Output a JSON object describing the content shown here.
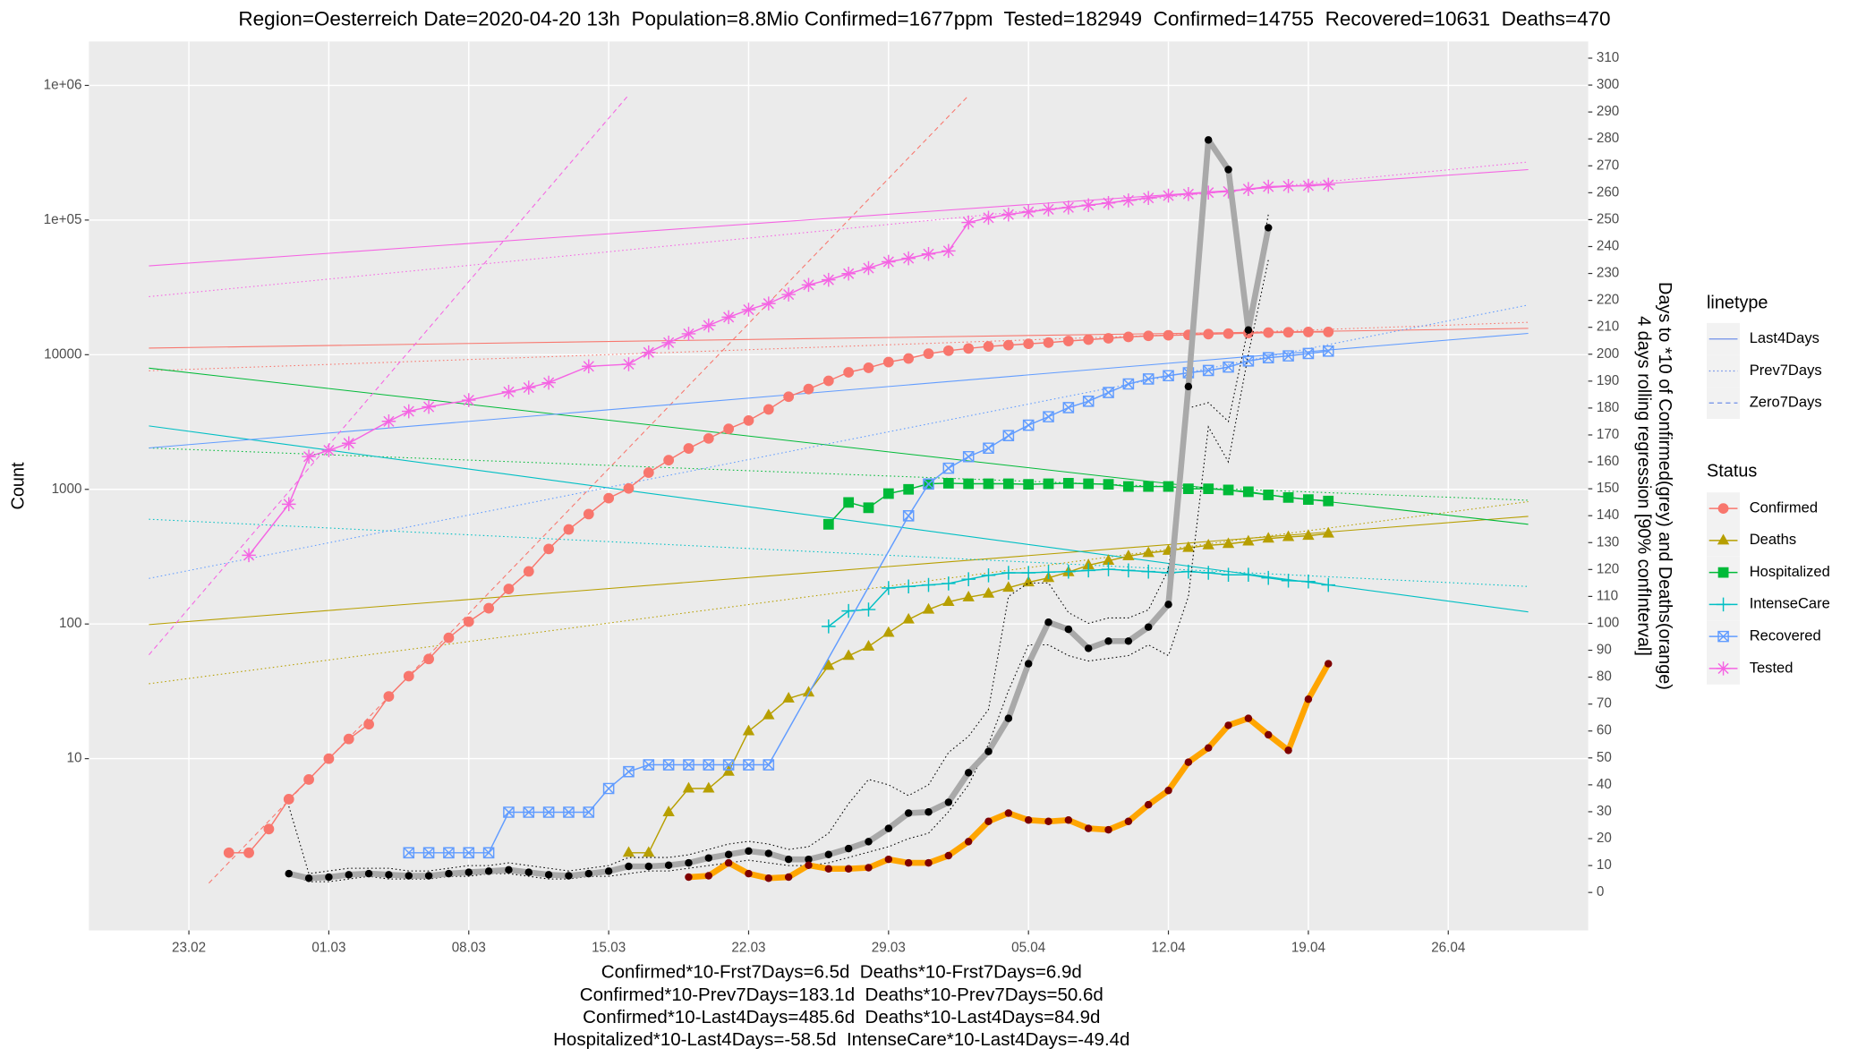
{
  "chart_data": {
    "type": "line",
    "title": "Region=Oesterreich Date=2020-04-20 13h  Population=8.8Mio Confirmed=1677ppm  Tested=182949  Confirmed=14755  Recovered=10631  Deaths=470",
    "y_label": "Count",
    "y2_label": [
      "Days to *10 of Confirmed(grey) and Deaths(orange)",
      "4 days rolling regression [90% confInterval]"
    ],
    "x_label": [
      "Confirmed*10-Frst7Days=6.5d  Deaths*10-Frst7Days=6.9d",
      "Confirmed*10-Prev7Days=183.1d  Deaths*10-Prev7Days=50.6d",
      "Confirmed*10-Last4Days=485.6d  Deaths*10-Last4Days=84.9d",
      "Hospitalized*10-Last4Days=-58.5d  IntenseCare*10-Last4Days=-49.4d"
    ],
    "xlim": [
      "18.02",
      "03.05"
    ],
    "xticks": [
      "23.02",
      "01.03",
      "08.03",
      "15.03",
      "22.03",
      "29.03",
      "05.04",
      "12.04",
      "19.04",
      "26.04"
    ],
    "log_y": true,
    "ylim": [
      0.53,
      2120000
    ],
    "yticks": [
      10,
      100,
      1000,
      10000,
      {
        "value": 100000,
        "label": "1e+05"
      },
      {
        "value": 1000000,
        "label": "1e+06"
      }
    ],
    "y2lim": [
      -14.1,
      316.2
    ],
    "y2ticks": [
      0,
      10,
      20,
      30,
      40,
      50,
      60,
      70,
      80,
      90,
      100,
      110,
      120,
      130,
      140,
      150,
      160,
      170,
      180,
      190,
      200,
      210,
      220,
      230,
      240,
      250,
      260,
      270,
      280,
      290,
      300,
      310
    ],
    "grid": true,
    "legend_position": "right",
    "linetype_title": "linetype",
    "linetype_color": "#6f8fe8",
    "linetypes": [
      {
        "name": "Last4Days",
        "dash": "solid"
      },
      {
        "name": "Prev7Days",
        "dash": "dotted"
      },
      {
        "name": "Zero7Days",
        "dash": "dashed"
      }
    ],
    "status_title": "Status",
    "series": [
      {
        "name": "Confirmed",
        "color": "#F8766D",
        "shape": "circle",
        "x": [
          "25.02",
          "26.02",
          "27.02",
          "28.02",
          "29.02",
          "01.03",
          "02.03",
          "03.03",
          "04.03",
          "05.03",
          "06.03",
          "07.03",
          "08.03",
          "09.03",
          "10.03",
          "11.03",
          "12.03",
          "13.03",
          "14.03",
          "15.03",
          "16.03",
          "17.03",
          "18.03",
          "19.03",
          "20.03",
          "21.03",
          "22.03",
          "23.03",
          "24.03",
          "25.03",
          "26.03",
          "27.03",
          "28.03",
          "29.03",
          "30.03",
          "31.03",
          "01.04",
          "02.04",
          "03.04",
          "04.04",
          "05.04",
          "06.04",
          "07.04",
          "08.04",
          "09.04",
          "10.04",
          "11.04",
          "12.04",
          "13.04",
          "14.04",
          "15.04",
          "16.04",
          "17.04",
          "18.04",
          "19.04",
          "20.04"
        ],
        "values": [
          2,
          2,
          3,
          5,
          7,
          10,
          14,
          18,
          29,
          41,
          55,
          79,
          104,
          131,
          182,
          246,
          361,
          504,
          655,
          860,
          1016,
          1332,
          1646,
          2013,
          2388,
          2814,
          3244,
          3924,
          4876,
          5560,
          6398,
          7399,
          7995,
          8813,
          9377,
          10180,
          10711,
          11129,
          11524,
          11781,
          12051,
          12297,
          12639,
          12942,
          13244,
          13555,
          13806,
          13945,
          14041,
          14226,
          14336,
          14476,
          14595,
          14671,
          14749,
          14755
        ],
        "fits": [
          {
            "x": [
              "21.02",
              "30.04"
            ],
            "values": [
              11200,
              15700
            ]
          },
          {
            "x": [
              "21.02",
              "30.04"
            ],
            "values": [
              7600,
              17400
            ]
          },
          {
            "x": [
              "24.02",
              "02.04"
            ],
            "values": [
              1.19,
              840000
            ]
          }
        ]
      },
      {
        "name": "Deaths",
        "color": "#B79F00",
        "shape": "triangle",
        "x": [
          "16.03",
          "17.03",
          "18.03",
          "19.03",
          "20.03",
          "21.03",
          "22.03",
          "23.03",
          "24.03",
          "25.03",
          "26.03",
          "27.03",
          "28.03",
          "29.03",
          "30.03",
          "31.03",
          "01.04",
          "02.04",
          "03.04",
          "04.04",
          "05.04",
          "06.04",
          "07.04",
          "08.04",
          "09.04",
          "10.04",
          "11.04",
          "12.04",
          "13.04",
          "14.04",
          "15.04",
          "16.04",
          "17.04",
          "18.04",
          "19.04",
          "20.04"
        ],
        "values": [
          2,
          2,
          4,
          6,
          6,
          8,
          16,
          21,
          28,
          31,
          49,
          58,
          68,
          86,
          108,
          128,
          146,
          158,
          168,
          186,
          204,
          220,
          243,
          273,
          295,
          319,
          337,
          350,
          368,
          384,
          393,
          410,
          431,
          443,
          452,
          470
        ],
        "fits": [
          {
            "x": [
              "21.02",
              "30.04"
            ],
            "values": [
              99,
              630
            ]
          },
          {
            "x": [
              "21.02",
              "30.04"
            ],
            "values": [
              36,
              810
            ]
          },
          null
        ]
      },
      {
        "name": "Hospitalized",
        "color": "#00BA38",
        "shape": "square",
        "x": [
          "26.03",
          "27.03",
          "28.03",
          "29.03",
          "30.03",
          "31.03",
          "01.04",
          "02.04",
          "03.04",
          "04.04",
          "05.04",
          "06.04",
          "07.04",
          "08.04",
          "09.04",
          "10.04",
          "11.04",
          "12.04",
          "13.04",
          "14.04",
          "15.04",
          "16.04",
          "17.04",
          "18.04",
          "19.04",
          "20.04"
        ],
        "values": [
          550,
          800,
          730,
          930,
          1000,
          1100,
          1110,
          1100,
          1100,
          1100,
          1090,
          1100,
          1110,
          1100,
          1090,
          1050,
          1050,
          1050,
          1010,
          1010,
          990,
          960,
          910,
          870,
          840,
          820
        ],
        "fits": [
          {
            "x": [
              "21.02",
              "30.04"
            ],
            "values": [
              7950,
              550
            ]
          },
          {
            "x": [
              "21.02",
              "30.04"
            ],
            "values": [
              2030,
              830
            ]
          },
          null
        ]
      },
      {
        "name": "IntenseCare",
        "color": "#00BFC4",
        "shape": "plus",
        "x": [
          "26.03",
          "27.03",
          "28.03",
          "29.03",
          "30.03",
          "31.03",
          "01.04",
          "02.04",
          "03.04",
          "04.04",
          "05.04",
          "06.04",
          "07.04",
          "08.04",
          "09.04",
          "10.04",
          "11.04",
          "12.04",
          "13.04",
          "14.04",
          "15.04",
          "16.04",
          "17.04",
          "18.04",
          "19.04",
          "20.04"
        ],
        "values": [
          96,
          125,
          128,
          185,
          190,
          195,
          200,
          215,
          230,
          240,
          240,
          243,
          245,
          250,
          255,
          250,
          245,
          240,
          245,
          240,
          232,
          232,
          220,
          210,
          207,
          195
        ],
        "fits": [
          {
            "x": [
              "21.02",
              "30.04"
            ],
            "values": [
              2960,
              123
            ]
          },
          {
            "x": [
              "21.02",
              "30.04"
            ],
            "values": [
              600,
              190
            ]
          },
          null
        ]
      },
      {
        "name": "Recovered",
        "color": "#619CFF",
        "shape": "square-cross",
        "x": [
          "05.03",
          "06.03",
          "07.03",
          "08.03",
          "09.03",
          "10.03",
          "11.03",
          "12.03",
          "13.03",
          "14.03",
          "15.03",
          "16.03",
          "17.03",
          "18.03",
          "19.03",
          "20.03",
          "21.03",
          "22.03",
          "23.03",
          "30.03",
          "31.03",
          "01.04",
          "02.04",
          "03.04",
          "04.04",
          "05.04",
          "06.04",
          "07.04",
          "08.04",
          "09.04",
          "10.04",
          "11.04",
          "12.04",
          "13.04",
          "14.04",
          "15.04",
          "16.04",
          "17.04",
          "18.04",
          "19.04",
          "20.04"
        ],
        "values": [
          2,
          2,
          2,
          2,
          2,
          4,
          4,
          4,
          4,
          4,
          6,
          8,
          9,
          9,
          9,
          9,
          9,
          9,
          9,
          636,
          1095,
          1436,
          1749,
          2022,
          2507,
          2998,
          3463,
          4046,
          4512,
          5240,
          6064,
          6604,
          6987,
          7343,
          7633,
          8098,
          8986,
          9500,
          9800,
          10214,
          10631
        ],
        "fits": [
          {
            "x": [
              "21.02",
              "30.04"
            ],
            "values": [
              2030,
              14400
            ]
          },
          {
            "x": [
              "21.02",
              "30.04"
            ],
            "values": [
              218,
              23400
            ]
          },
          null
        ]
      },
      {
        "name": "Tested",
        "color": "#F564E3",
        "shape": "asterisk",
        "x": [
          "26.02",
          "28.02",
          "29.02",
          "01.03",
          "02.03",
          "04.03",
          "05.03",
          "06.03",
          "08.03",
          "10.03",
          "11.03",
          "12.03",
          "14.03",
          "16.03",
          "17.03",
          "18.03",
          "19.03",
          "20.03",
          "21.03",
          "22.03",
          "23.03",
          "24.03",
          "25.03",
          "26.03",
          "27.03",
          "28.03",
          "29.03",
          "30.03",
          "31.03",
          "01.04",
          "02.04",
          "03.04",
          "04.04",
          "05.04",
          "06.04",
          "07.04",
          "08.04",
          "09.04",
          "10.04",
          "11.04",
          "12.04",
          "13.04",
          "14.04",
          "15.04",
          "16.04",
          "17.04",
          "18.04",
          "19.04",
          "20.04"
        ],
        "values": [
          324,
          776,
          1750,
          1950,
          2200,
          3200,
          3800,
          4100,
          4600,
          5300,
          5700,
          6200,
          8200,
          8500,
          10400,
          12300,
          14300,
          16500,
          19000,
          21600,
          24000,
          28000,
          33000,
          36000,
          40000,
          44000,
          49000,
          52000,
          56000,
          59000,
          96000,
          104000,
          110000,
          115000,
          120000,
          124000,
          129000,
          134000,
          140000,
          146000,
          152000,
          156000,
          160000,
          163000,
          170000,
          177000,
          179000,
          180000,
          182949
        ],
        "fits": [
          {
            "x": [
              "21.02",
              "30.04"
            ],
            "values": [
              45700,
              237000
            ]
          },
          {
            "x": [
              "21.02",
              "30.04"
            ],
            "values": [
              27000,
              270000
            ]
          },
          {
            "x": [
              "21.02",
              "16.03"
            ],
            "values": [
              59,
              850000
            ]
          }
        ]
      }
    ],
    "y2_series": [
      {
        "axis": "y2",
        "color": "#A9A9A9",
        "point_color": "#000000",
        "band_color": "#000000",
        "x": [
          "28.02",
          "29.02",
          "01.03",
          "02.03",
          "03.03",
          "04.03",
          "05.03",
          "06.03",
          "07.03",
          "08.03",
          "09.03",
          "10.03",
          "11.03",
          "12.03",
          "13.03",
          "14.03",
          "15.03",
          "16.03",
          "17.03",
          "18.03",
          "19.03",
          "20.03",
          "21.03",
          "22.03",
          "23.03",
          "24.03",
          "25.03",
          "26.03",
          "27.03",
          "28.03",
          "29.03",
          "30.03",
          "31.03",
          "01.04",
          "02.04",
          "03.04",
          "04.04",
          "05.04",
          "06.04",
          "07.04",
          "08.04",
          "09.04",
          "10.04",
          "11.04",
          "12.04",
          "13.04",
          "14.04",
          "15.04",
          "16.04",
          "17.04"
        ],
        "values": [
          7,
          5.3,
          5.7,
          6.6,
          7,
          6.6,
          6.2,
          6.2,
          7,
          7.5,
          7.9,
          8.4,
          7.5,
          6.6,
          6.2,
          7,
          7.9,
          9.7,
          9.7,
          10.1,
          11,
          12.8,
          14.1,
          15.4,
          14.5,
          12.3,
          12.3,
          14.1,
          16.3,
          18.9,
          23.8,
          29.5,
          29.9,
          33.5,
          44.5,
          52.4,
          64.7,
          85,
          100.4,
          97.8,
          90.7,
          93.4,
          93.4,
          98.6,
          107,
          188,
          279.6,
          268.6,
          209,
          247
        ],
        "lower": [
          7,
          4,
          4,
          5,
          6,
          5,
          5,
          5,
          6,
          6,
          7,
          7,
          6,
          5,
          5,
          6,
          6,
          7,
          8,
          8,
          9,
          10,
          11,
          12,
          11,
          10,
          10,
          11,
          13,
          15,
          17,
          20,
          22,
          30,
          40,
          55,
          75,
          92,
          92,
          88,
          86,
          87,
          88,
          92,
          88,
          110,
          173,
          160,
          200,
          235
        ],
        "upper": [
          32,
          7,
          8,
          9,
          9,
          9,
          8,
          8,
          9,
          10,
          10,
          11,
          10,
          9,
          8,
          9,
          10,
          13,
          13,
          13,
          14,
          16,
          18,
          19,
          18,
          16,
          17,
          22,
          33,
          42,
          40,
          36,
          40,
          52,
          58,
          68,
          110,
          115,
          115,
          104,
          100,
          102,
          102,
          105,
          120,
          180,
          182,
          175,
          210,
          252
        ]
      },
      {
        "axis": "y2",
        "color": "#FFA500",
        "point_color": "#7F0000",
        "x": [
          "19.03",
          "20.03",
          "21.03",
          "22.03",
          "23.03",
          "24.03",
          "25.03",
          "26.03",
          "27.03",
          "28.03",
          "29.03",
          "30.03",
          "31.03",
          "01.04",
          "02.04",
          "03.04",
          "04.04",
          "05.04",
          "06.04",
          "07.04",
          "08.04",
          "09.04",
          "10.04",
          "11.04",
          "12.04",
          "13.04",
          "14.04",
          "15.04",
          "16.04",
          "17.04",
          "18.04",
          "19.04",
          "20.04"
        ],
        "values": [
          5.7,
          6.2,
          11,
          7,
          5.3,
          5.7,
          10.1,
          8.8,
          8.8,
          9.2,
          12.3,
          11,
          11,
          13.7,
          18.9,
          26.4,
          29.5,
          26.9,
          26.4,
          26.9,
          23.8,
          23.3,
          26.4,
          32.6,
          37.9,
          48.4,
          53.7,
          62.1,
          64.7,
          58.6,
          52.8,
          71.8,
          85
        ]
      }
    ]
  }
}
